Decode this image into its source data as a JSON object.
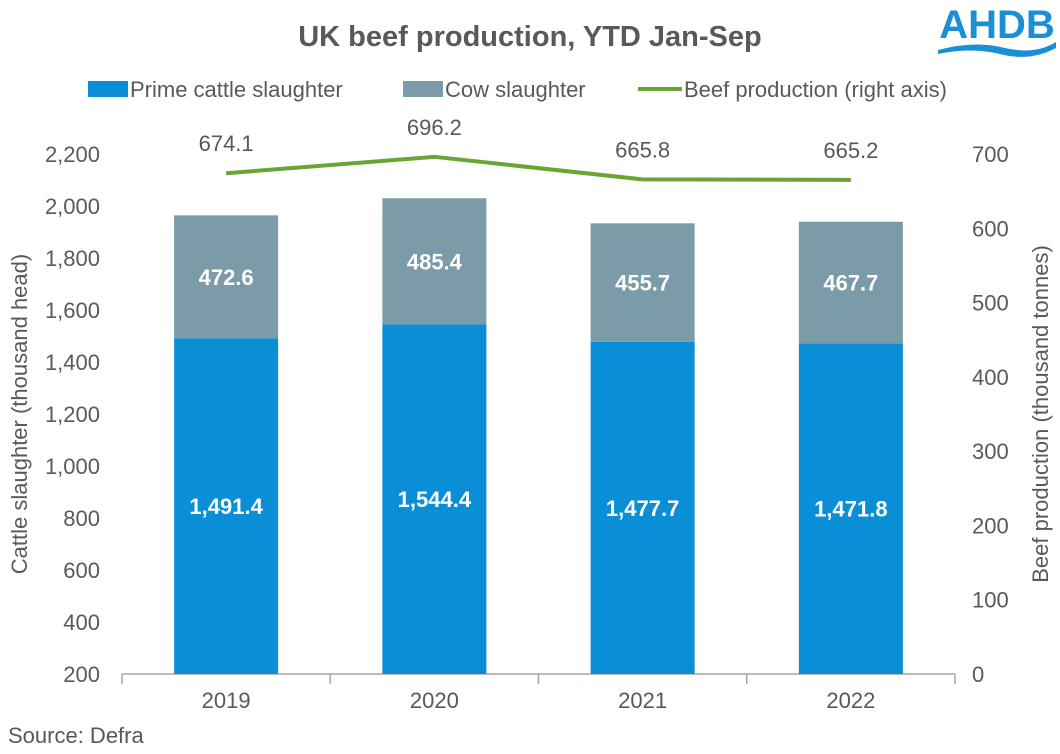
{
  "logo": {
    "text": "AHDB",
    "color": "#1a8fd6"
  },
  "source": "Source: Defra",
  "chart_data": {
    "type": "bar",
    "title": "UK beef production, YTD Jan-Sep",
    "categories": [
      "2019",
      "2020",
      "2021",
      "2022"
    ],
    "series": [
      {
        "name": "Prime cattle slaughter",
        "kind": "stacked-bar",
        "axis": "left",
        "color": "#0a8fd6",
        "values": [
          1491.4,
          1544.4,
          1477.7,
          1471.8
        ],
        "labels": [
          "1,491.4",
          "1,544.4",
          "1,477.7",
          "1,471.8"
        ]
      },
      {
        "name": "Cow slaughter",
        "kind": "stacked-bar",
        "axis": "left",
        "color": "#7b9ba9",
        "values": [
          472.6,
          485.4,
          455.7,
          467.7
        ],
        "labels": [
          "472.6",
          "485.4",
          "455.7",
          "467.7"
        ]
      },
      {
        "name": "Beef production (right axis)",
        "kind": "line",
        "axis": "right",
        "color": "#6aa534",
        "values": [
          674.1,
          696.2,
          665.8,
          665.2
        ],
        "labels": [
          "674.1",
          "696.2",
          "665.8",
          "665.2"
        ]
      }
    ],
    "ylabel": "Cattle slaughter (thousand head)",
    "ylim": [
      200,
      2200
    ],
    "yticks": [
      "200",
      "400",
      "600",
      "800",
      "1,000",
      "1,200",
      "1,400",
      "1,600",
      "1,800",
      "2,000",
      "2,200"
    ],
    "y2label": "Beef production (thousand tonnes)",
    "y2lim": [
      0,
      700
    ],
    "y2ticks": [
      "0",
      "100",
      "200",
      "300",
      "400",
      "500",
      "600",
      "700"
    ],
    "grid": false,
    "legend": "top"
  }
}
